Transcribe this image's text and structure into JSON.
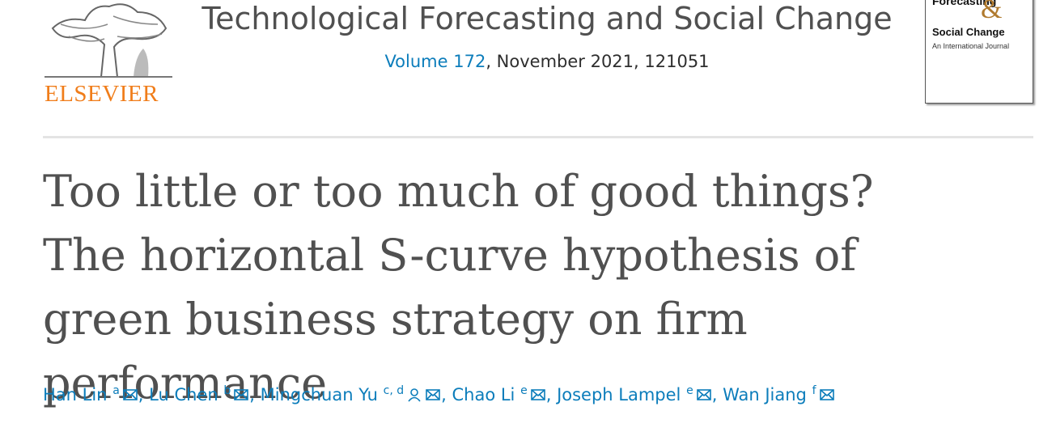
{
  "header": {
    "publisher": "ELSEVIER",
    "journal": "Technological Forecasting and Social Change",
    "volume": "Volume 172",
    "issue_info": ", November 2021, 121051",
    "cover": {
      "line1": "Forecasting",
      "amp": "&",
      "line2": "Social Change",
      "subtitle": "An International Journal"
    }
  },
  "article": {
    "title": "Too little or too much of good things? The horizontal S-curve hypothesis of green business strategy on firm performance",
    "separator": ", ",
    "authors": [
      {
        "name": "Han Lin",
        "affiliation": "a",
        "corresponding": false
      },
      {
        "name": "Lu Chen",
        "affiliation": "b",
        "corresponding": false
      },
      {
        "name": "Mingchuan Yu",
        "affiliation": "c, d",
        "corresponding": true
      },
      {
        "name": "Chao Li",
        "affiliation": "e",
        "corresponding": false
      },
      {
        "name": "Joseph Lampel",
        "affiliation": "e",
        "corresponding": false
      },
      {
        "name": "Wan Jiang",
        "affiliation": "f",
        "corresponding": false
      }
    ]
  }
}
